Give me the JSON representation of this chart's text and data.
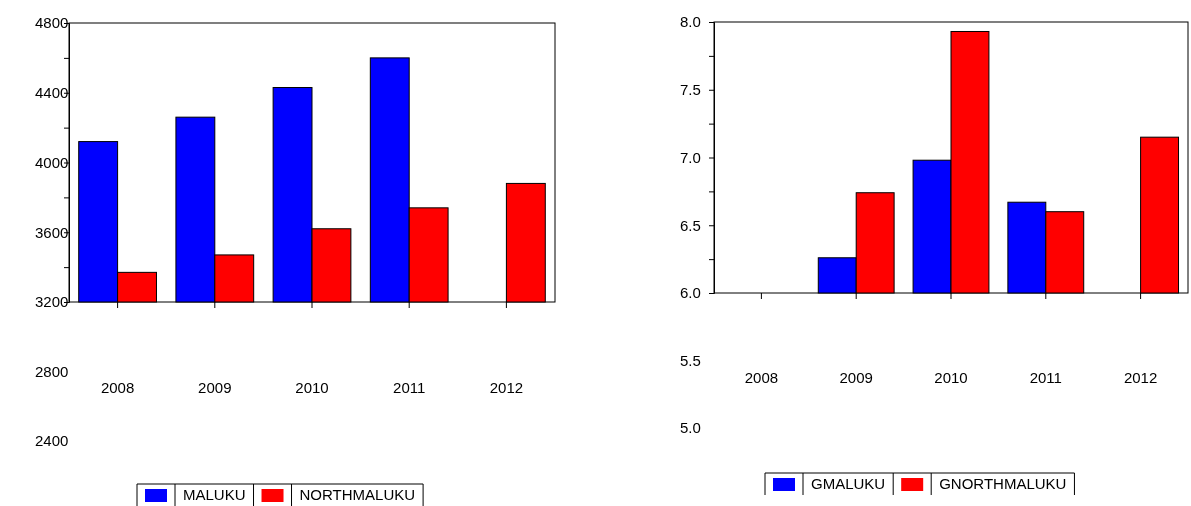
{
  "chart_data": [
    {
      "type": "bar",
      "categories": [
        "2008",
        "2009",
        "2010",
        "2011",
        "2012"
      ],
      "series": [
        {
          "name": "MALUKU",
          "color": "#0000ff",
          "values": [
            4120,
            4260,
            4430,
            4600,
            null
          ]
        },
        {
          "name": "NORTHMALUKU",
          "color": "#ff0000",
          "values": [
            3370,
            3470,
            3620,
            3740,
            3880
          ]
        }
      ],
      "ylim": [
        3200,
        4800
      ],
      "yticks": [
        3200,
        {
          "value": 3400,
          "label": null
        },
        3600,
        {
          "value": 3800,
          "label": null
        },
        4000,
        {
          "value": 4200,
          "label": null
        },
        4400,
        {
          "value": 4600,
          "label": null
        },
        4800
      ],
      "annotations": [
        "2800",
        "2400"
      ],
      "legend": "bottom",
      "grid": false
    },
    {
      "type": "bar",
      "categories": [
        "2008",
        "2009",
        "2010",
        "2011",
        "2012"
      ],
      "series": [
        {
          "name": "GMALUKU",
          "color": "#0000ff",
          "values": [
            null,
            6.26,
            6.98,
            6.67,
            null
          ]
        },
        {
          "name": "GNORTHMALUKU",
          "color": "#ff0000",
          "values": [
            null,
            6.74,
            7.93,
            6.6,
            7.15
          ]
        }
      ],
      "ylim": [
        6.0,
        8.0
      ],
      "yticks": [
        {
          "value": 6.0,
          "label": "6.0"
        },
        {
          "value": 6.25,
          "label": null
        },
        {
          "value": 6.5,
          "label": "6.5"
        },
        {
          "value": 6.75,
          "label": null
        },
        {
          "value": 7.0,
          "label": "7.0"
        },
        {
          "value": 7.25,
          "label": null
        },
        {
          "value": 7.5,
          "label": "7.5"
        },
        {
          "value": 7.75,
          "label": null
        },
        {
          "value": 8.0,
          "label": "8.0"
        }
      ],
      "annotations": [
        "5.5",
        "5.0"
      ],
      "legend": "bottom",
      "grid": false
    }
  ]
}
